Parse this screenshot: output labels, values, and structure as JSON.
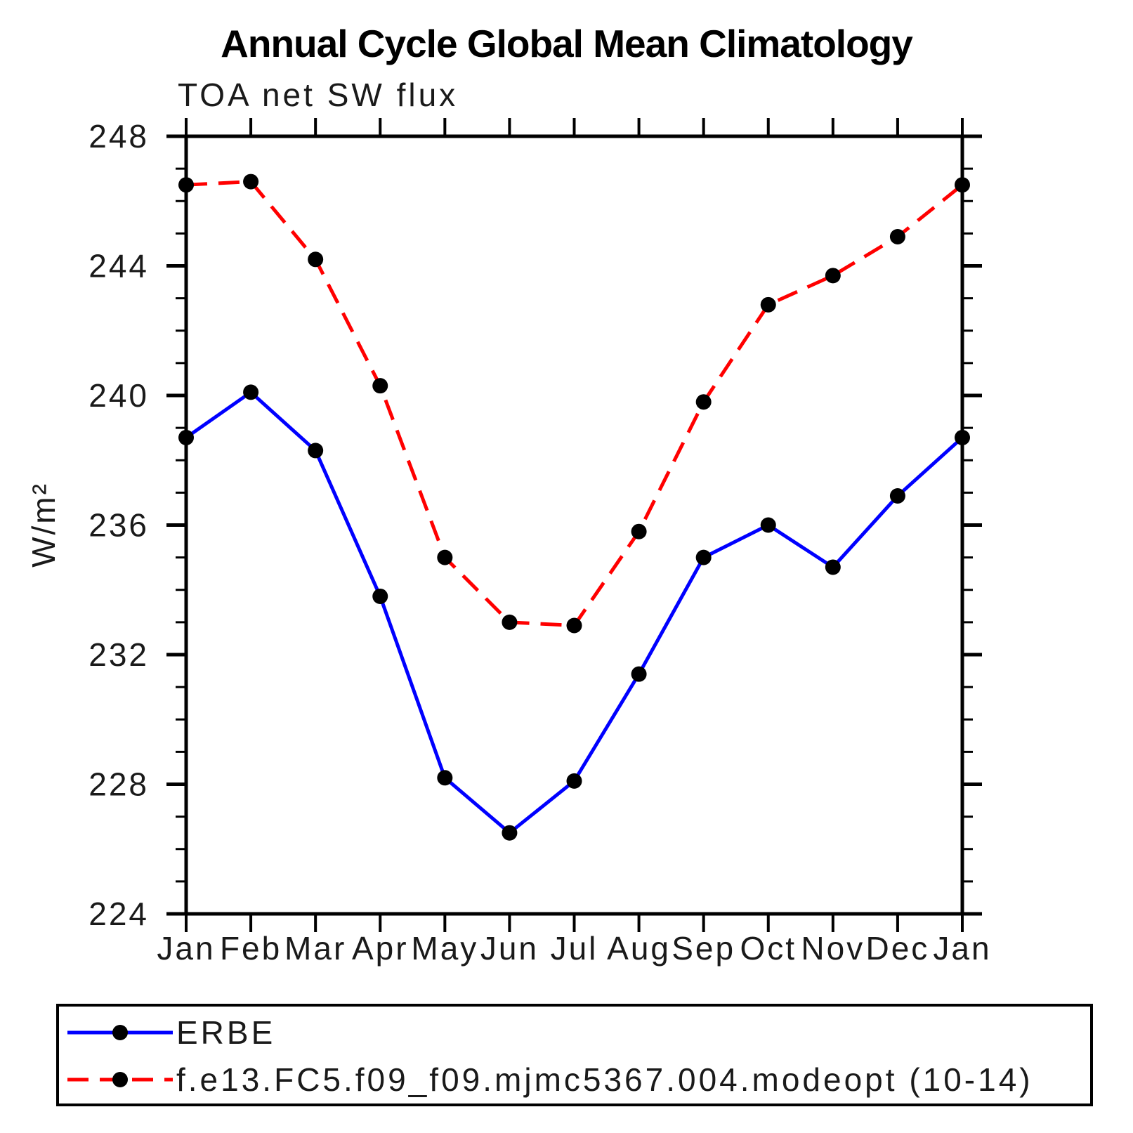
{
  "title": "Annual Cycle Global Mean Climatology",
  "subtitle": "TOA net SW flux",
  "chart_data": {
    "type": "line",
    "categories": [
      "Jan",
      "Feb",
      "Mar",
      "Apr",
      "May",
      "Jun",
      "Jul",
      "Aug",
      "Sep",
      "Oct",
      "Nov",
      "Dec",
      "Jan"
    ],
    "xlabel": "",
    "ylabel": "W/m²",
    "ylim": [
      224,
      248
    ],
    "y_major_ticks": [
      224,
      228,
      232,
      236,
      240,
      244,
      248
    ],
    "y_minor_step": 1,
    "grid": false,
    "legend_position": "bottom",
    "frame": "box-with-outward-ticks",
    "series": [
      {
        "name": "ERBE",
        "color": "#0000ff",
        "line_style": "solid",
        "marker": "filled-circle",
        "marker_color": "#000000",
        "values": [
          238.7,
          240.1,
          238.3,
          233.8,
          228.2,
          226.5,
          228.1,
          231.4,
          235.0,
          236.0,
          234.7,
          236.9,
          238.7
        ]
      },
      {
        "name": "f.e13.FC5.f09_f09.mjmc5367.004.modeopt (10-14)",
        "color": "#ff0000",
        "line_style": "dashed",
        "marker": "filled-circle",
        "marker_color": "#000000",
        "values": [
          246.5,
          246.6,
          244.2,
          240.3,
          235.0,
          233.0,
          232.9,
          235.8,
          239.8,
          242.8,
          243.7,
          244.9,
          246.5
        ]
      }
    ]
  }
}
